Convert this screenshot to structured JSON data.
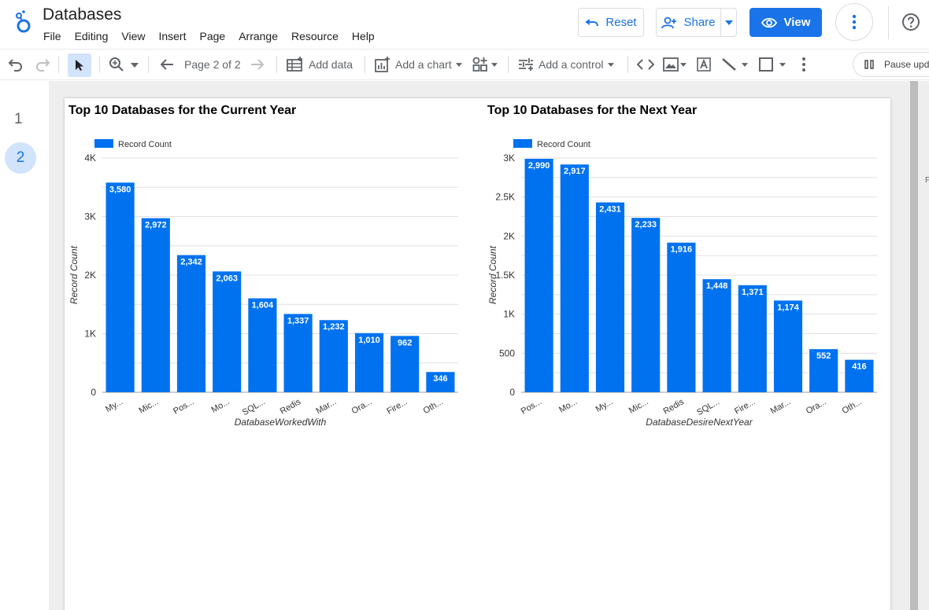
{
  "app": {
    "title": "Databases",
    "menu": [
      "File",
      "Editing",
      "View",
      "Insert",
      "Page",
      "Arrange",
      "Resource",
      "Help"
    ],
    "reset_label": "Reset",
    "share_label": "Share",
    "view_label": "View"
  },
  "toolbar": {
    "page_label": "Page 2 of 2",
    "add_data_label": "Add data",
    "add_chart_label": "Add a chart",
    "add_control_label": "Add a control",
    "pause_label": "Pause upd"
  },
  "pages": [
    "1",
    "2"
  ],
  "edge_text": "F",
  "colors": {
    "accent": "#1a73e8",
    "bar": "#0072f0",
    "selected_bg": "#d2e3fc"
  },
  "chart_data": [
    {
      "type": "bar",
      "title": "Top 10 Databases for the Current Year",
      "legend": "Record Count",
      "legend_position": "top-left",
      "xlabel": "DatabaseWorkedWith",
      "ylabel": "Record Count",
      "categories": [
        "My...",
        "Mic...",
        "Pos...",
        "Mo...",
        "SQL...",
        "Redis",
        "Mar...",
        "Ora...",
        "Fire...",
        "Oth..."
      ],
      "values": [
        3580,
        2972,
        2342,
        2063,
        1604,
        1337,
        1232,
        1010,
        962,
        346
      ],
      "data_labels": [
        "3,580",
        "2,972",
        "2,342",
        "2,063",
        "1,604",
        "1,337",
        "1,232",
        "1,010",
        "962",
        "346"
      ],
      "ylim": [
        0,
        4000
      ],
      "yticks": [
        0,
        1000,
        2000,
        3000,
        4000
      ],
      "ytick_labels": [
        "0",
        "1K",
        "2K",
        "3K",
        "4K"
      ],
      "grid_step": 500,
      "grid": true
    },
    {
      "type": "bar",
      "title": "Top 10 Databases for the Next Year",
      "legend": "Record Count",
      "legend_position": "top-left",
      "xlabel": "DatabaseDesireNextYear",
      "ylabel": "Record Count",
      "categories": [
        "Pos...",
        "Mo...",
        "My...",
        "Mic...",
        "Redis",
        "SQL...",
        "Fire...",
        "Mar...",
        "Ora...",
        "Oth..."
      ],
      "values": [
        2990,
        2917,
        2431,
        2233,
        1916,
        1448,
        1371,
        1174,
        552,
        416
      ],
      "data_labels": [
        "2,990",
        "2,917",
        "2,431",
        "2,233",
        "1,916",
        "1,448",
        "1,371",
        "1,174",
        "552",
        "416"
      ],
      "ylim": [
        0,
        3000
      ],
      "yticks": [
        0,
        500,
        1000,
        1500,
        2000,
        2500,
        3000
      ],
      "ytick_labels": [
        "0",
        "500",
        "1K",
        "1.5K",
        "2K",
        "2.5K",
        "3K"
      ],
      "grid_step": 250,
      "grid": true
    }
  ]
}
